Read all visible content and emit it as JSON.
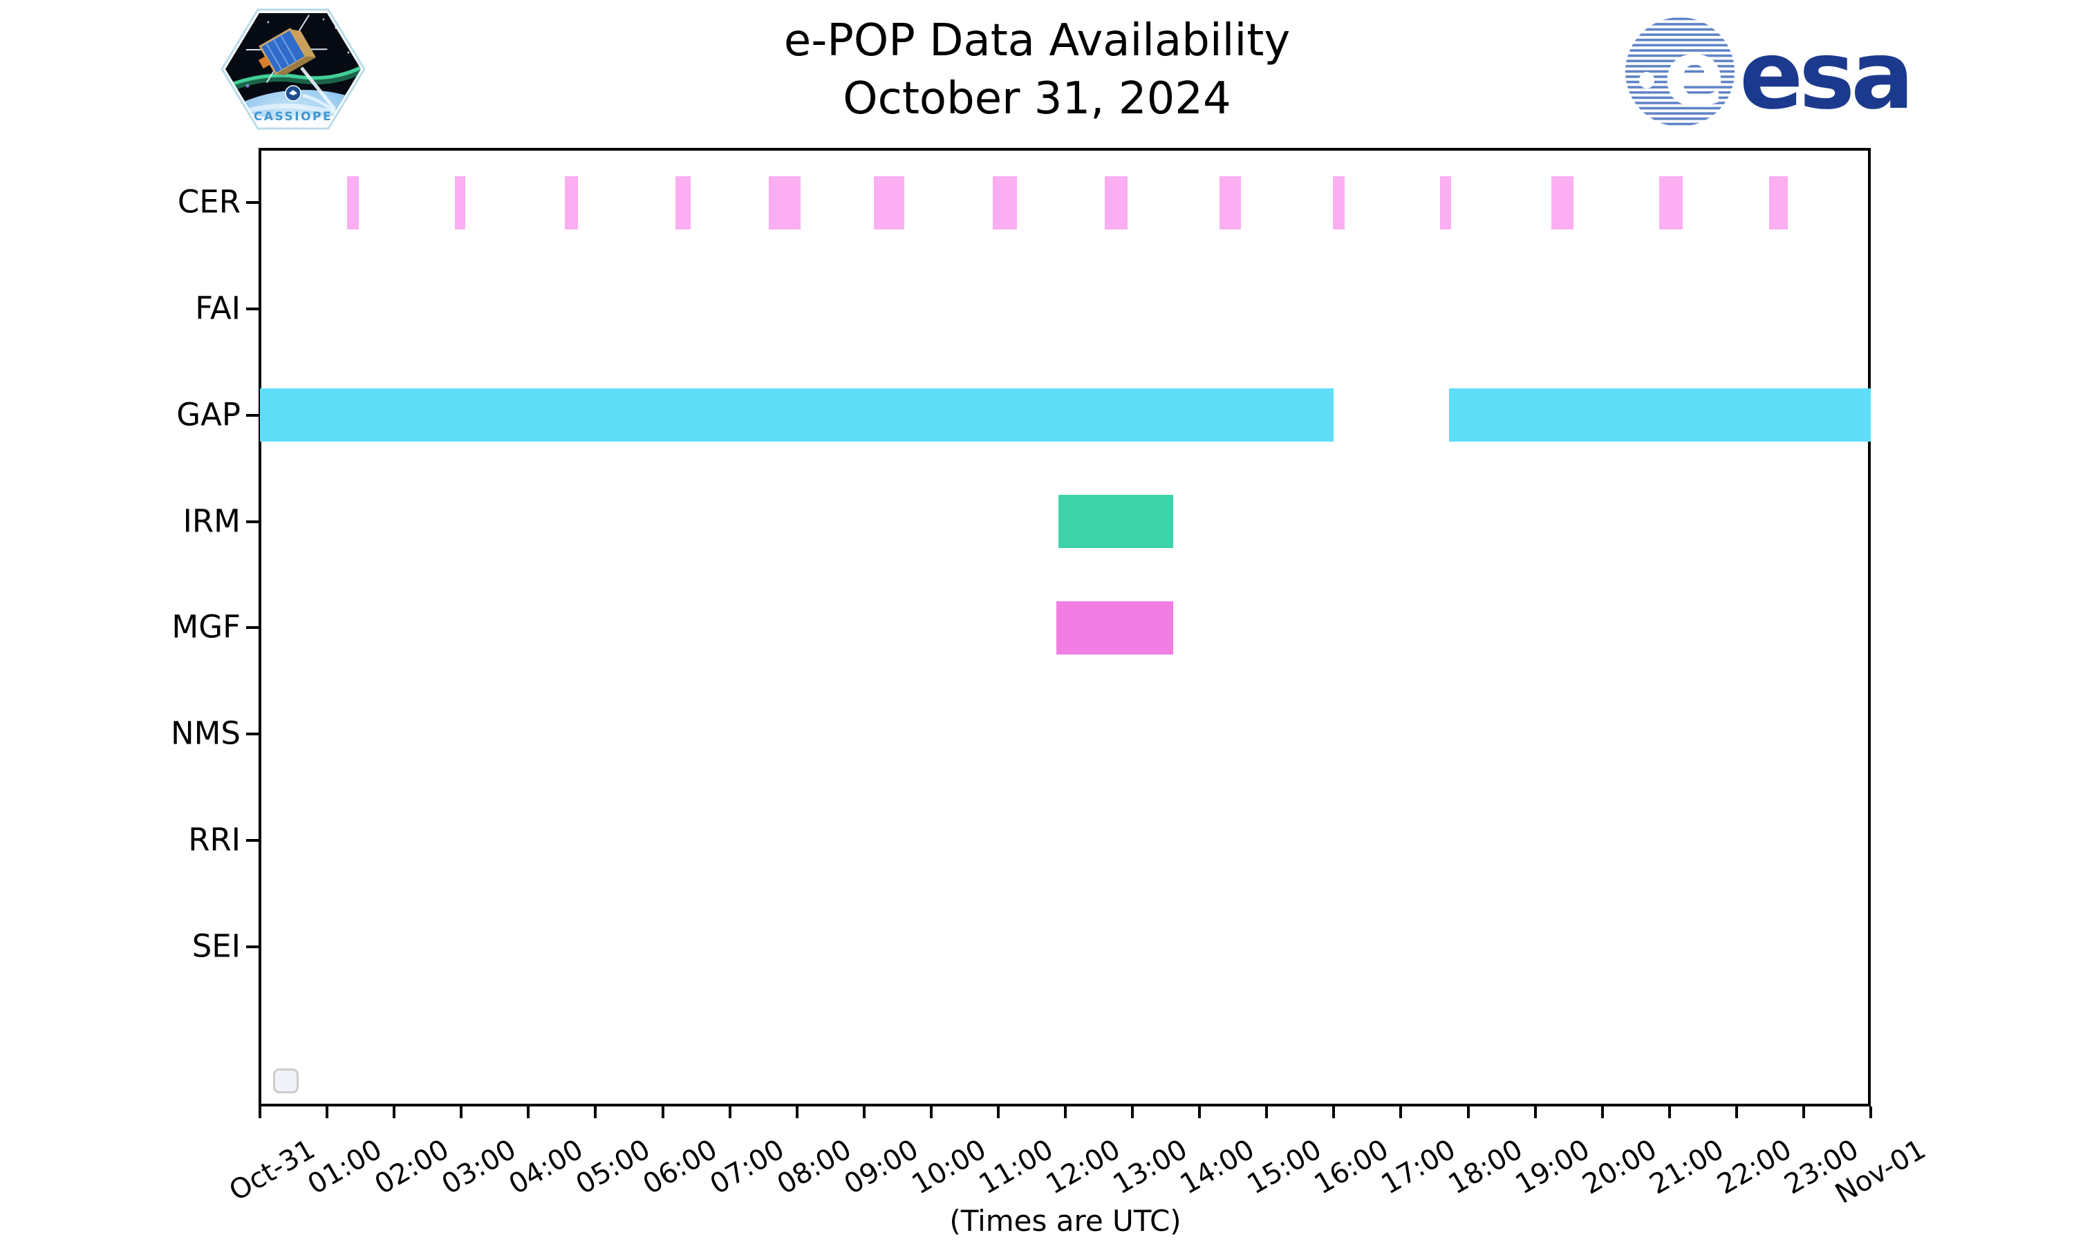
{
  "header": {
    "title_line1": "e-POP Data Availability",
    "title_line2": "October 31, 2024",
    "cassiope_patch_label": "CASSIOPE",
    "esa_logo_text": "esa"
  },
  "footer": {
    "xlabel": "(Times are UTC)"
  },
  "chart_data": {
    "type": "timeline",
    "title": "e-POP Data Availability",
    "subtitle": "October 31, 2024",
    "xlabel": "(Times are UTC)",
    "x_axis": {
      "start_label": "Oct-31",
      "end_label": "Nov-01",
      "range_hours": [
        0,
        24
      ],
      "tick_interval_hours": 1,
      "tick_labels": [
        "Oct-31",
        "01:00",
        "02:00",
        "03:00",
        "04:00",
        "05:00",
        "06:00",
        "07:00",
        "08:00",
        "09:00",
        "10:00",
        "11:00",
        "12:00",
        "13:00",
        "14:00",
        "15:00",
        "16:00",
        "17:00",
        "18:00",
        "19:00",
        "20:00",
        "21:00",
        "22:00",
        "23:00",
        "Nov-01"
      ]
    },
    "instruments": [
      "CER",
      "FAI",
      "GAP",
      "IRM",
      "MGF",
      "NMS",
      "RRI",
      "SEI"
    ],
    "series": [
      {
        "name": "CER",
        "color": "#FBAEF2",
        "intervals_hours": [
          [
            1.3,
            1.47
          ],
          [
            2.9,
            3.06
          ],
          [
            4.54,
            4.74
          ],
          [
            6.19,
            6.42
          ],
          [
            7.58,
            8.05
          ],
          [
            9.15,
            9.6
          ],
          [
            10.92,
            11.28
          ],
          [
            12.59,
            12.93
          ],
          [
            14.3,
            14.62
          ],
          [
            15.99,
            16.16
          ],
          [
            17.58,
            17.75
          ],
          [
            19.24,
            19.57
          ],
          [
            20.85,
            21.2
          ],
          [
            22.49,
            22.76
          ]
        ]
      },
      {
        "name": "FAI",
        "color": "#FBAEF2",
        "intervals_hours": []
      },
      {
        "name": "GAP",
        "color": "#5FDEF8",
        "intervals_hours": [
          [
            0.0,
            16.0
          ],
          [
            17.72,
            24.0
          ]
        ]
      },
      {
        "name": "IRM",
        "color": "#3DD3A9",
        "intervals_hours": [
          [
            11.9,
            13.61
          ]
        ]
      },
      {
        "name": "MGF",
        "color": "#F17EE3",
        "intervals_hours": [
          [
            11.87,
            13.61
          ]
        ]
      },
      {
        "name": "NMS",
        "color": "#FBAEF2",
        "intervals_hours": []
      },
      {
        "name": "RRI",
        "color": "#FBAEF2",
        "intervals_hours": []
      },
      {
        "name": "SEI",
        "color": "#FBAEF2",
        "intervals_hours": []
      }
    ],
    "legend": {
      "visible": true,
      "entries": []
    }
  }
}
